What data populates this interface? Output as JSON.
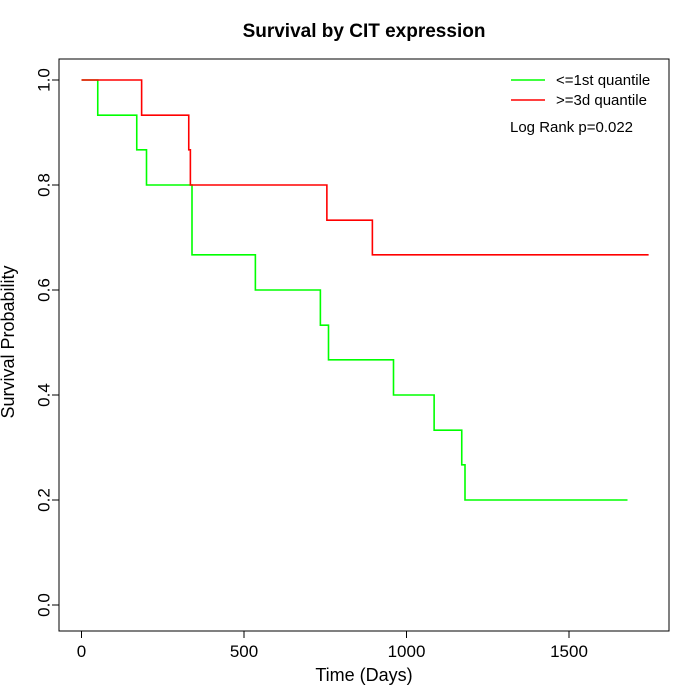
{
  "chart_data": {
    "type": "line",
    "title": "Survival by CIT expression",
    "xlabel": "Time (Days)",
    "ylabel": "Survival Probability",
    "xlim": [
      0,
      1750
    ],
    "ylim": [
      0,
      1.0
    ],
    "x_ticks": [
      "0",
      "500",
      "1000",
      "1500"
    ],
    "y_ticks": [
      "0.0",
      "0.2",
      "0.4",
      "0.6",
      "0.8",
      "1.0"
    ],
    "legend_position": "top-right",
    "annotation": "Log Rank p=0.022",
    "series": [
      {
        "name": "<=1st quantile",
        "color": "#00ff00",
        "step": true,
        "x": [
          0,
          50,
          170,
          200,
          340,
          535,
          735,
          760,
          960,
          1085,
          1170,
          1180,
          1680
        ],
        "y": [
          1.0,
          0.933,
          0.867,
          0.8,
          0.667,
          0.6,
          0.533,
          0.467,
          0.4,
          0.333,
          0.267,
          0.2,
          0.2
        ]
      },
      {
        "name": ">=3d quantile",
        "color": "#ff0000",
        "step": true,
        "x": [
          0,
          185,
          330,
          335,
          755,
          895,
          1745
        ],
        "y": [
          1.0,
          0.933,
          0.867,
          0.8,
          0.733,
          0.667,
          0.667
        ]
      }
    ]
  }
}
